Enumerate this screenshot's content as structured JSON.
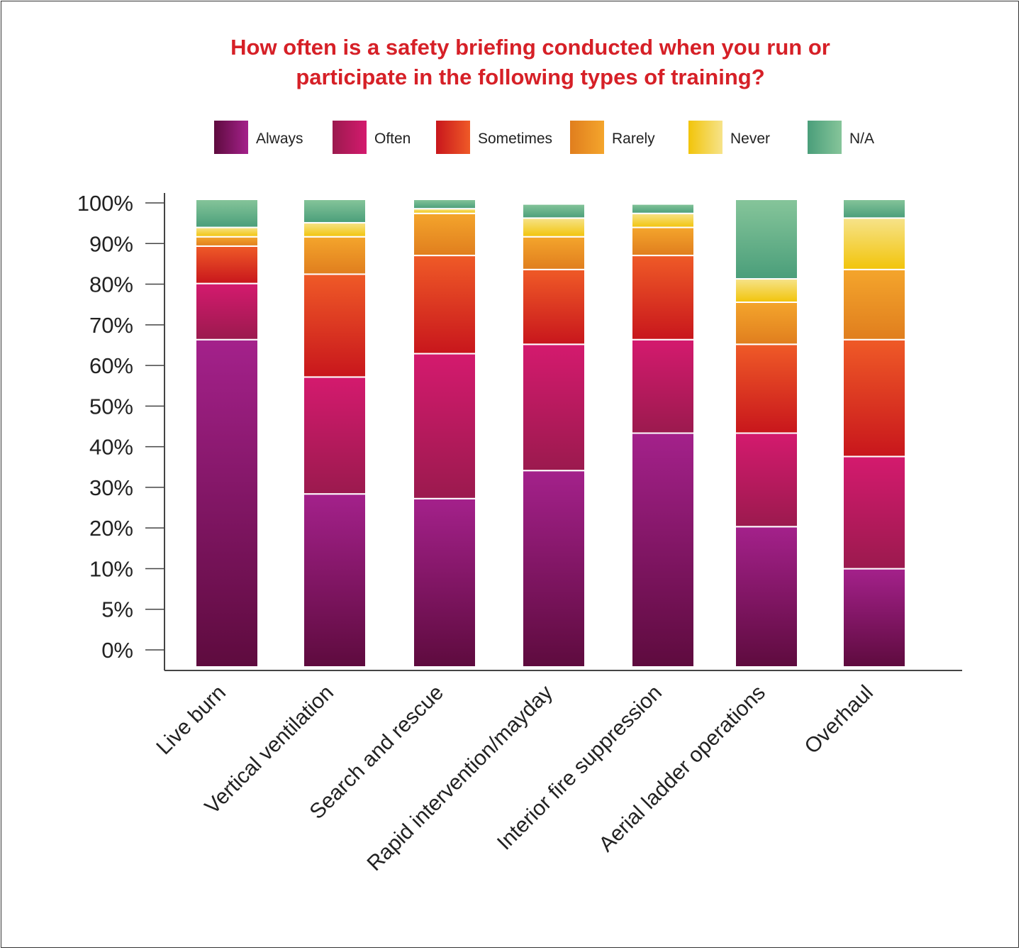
{
  "chart_data": {
    "type": "bar",
    "stacked": true,
    "title": [
      "How often is a safety briefing conducted when you run or",
      "participate in the following types of training?"
    ],
    "categories": [
      "Live burn",
      "Vertical ventilation",
      "Search and rescue",
      "Rapid intervention/mayday",
      "Interior fire suppression",
      "Aerial ladder operations",
      "Overhaul"
    ],
    "series": [
      {
        "name": "Always",
        "gradient": [
          "#5e0b3e",
          "#a4218b"
        ],
        "values": [
          70,
          37,
          36,
          42,
          50,
          30,
          21
        ]
      },
      {
        "name": "Often",
        "gradient": [
          "#9b1a4e",
          "#d41a6e"
        ],
        "values": [
          12,
          25,
          31,
          27,
          20,
          20,
          24
        ]
      },
      {
        "name": "Sometimes",
        "gradient": [
          "#c8161c",
          "#ef5a27"
        ],
        "values": [
          8,
          22,
          21,
          16,
          18,
          19,
          25
        ]
      },
      {
        "name": "Rarely",
        "gradient": [
          "#e07e1e",
          "#f4a52c"
        ],
        "values": [
          2,
          8,
          9,
          7,
          6,
          9,
          15
        ]
      },
      {
        "name": "Never",
        "gradient": [
          "#f2c40a",
          "#f6e38a"
        ],
        "values": [
          2,
          3,
          1,
          4,
          3,
          5,
          11
        ]
      },
      {
        "name": "N/A",
        "gradient": [
          "#4a9e7a",
          "#86c59a"
        ],
        "values": [
          6,
          5,
          2,
          3,
          2,
          17,
          4
        ]
      }
    ],
    "y_ticks": [
      "0%",
      "5%",
      "10%",
      "20%",
      "30%",
      "40%",
      "50%",
      "60%",
      "70%",
      "80%",
      "90%",
      "100%"
    ],
    "ylim": [
      0,
      100
    ],
    "legend_position": "top",
    "grid": false
  }
}
